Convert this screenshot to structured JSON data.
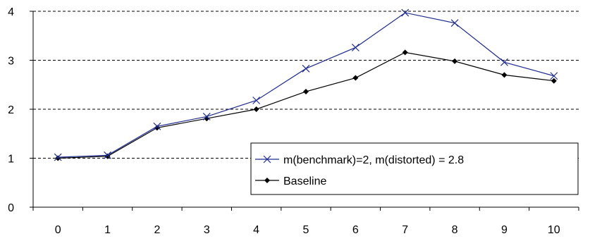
{
  "chart_data": {
    "type": "line",
    "x": [
      0,
      1,
      2,
      3,
      4,
      5,
      6,
      7,
      8,
      9,
      10
    ],
    "xlim": [
      0,
      10
    ],
    "ylim": [
      0,
      4
    ],
    "y_ticks": [
      0,
      1,
      2,
      3,
      4
    ],
    "x_ticks": [
      0,
      1,
      2,
      3,
      4,
      5,
      6,
      7,
      8,
      9,
      10
    ],
    "grid": "horizontal dashed",
    "legend_position": "lower-right",
    "series": [
      {
        "name": "m(benchmark)=2, m(distorted) = 2.8",
        "marker": "x",
        "color": "#1f2c8f",
        "values": [
          1.02,
          1.06,
          1.65,
          1.85,
          2.18,
          2.83,
          3.26,
          3.97,
          3.76,
          2.96,
          2.68
        ]
      },
      {
        "name": "Baseline",
        "marker": "diamond",
        "color": "#000000",
        "values": [
          1.0,
          1.04,
          1.62,
          1.81,
          2.0,
          2.36,
          2.64,
          3.16,
          2.98,
          2.7,
          2.58
        ]
      }
    ]
  }
}
